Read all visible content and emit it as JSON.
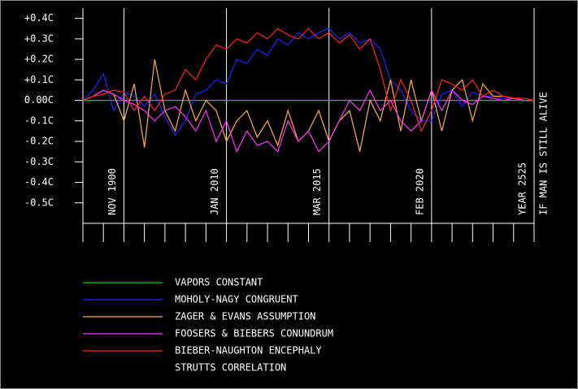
{
  "chart_data": {
    "type": "line",
    "x": [
      0,
      0.5,
      1,
      1.5,
      2,
      2.5,
      3,
      3.5,
      4,
      4.5,
      5,
      5.5,
      6,
      6.5,
      7,
      7.5,
      8,
      8.5,
      9,
      9.5,
      10,
      10.5,
      11,
      11.5,
      12,
      12.5,
      13,
      13.5,
      14,
      14.5,
      15,
      15.5,
      16,
      16.5,
      17,
      17.5,
      18,
      18.5,
      19,
      19.5,
      20,
      20.5,
      21,
      21.5,
      22
    ],
    "xlim": [
      0,
      22
    ],
    "xticks": [
      0,
      1,
      2,
      3,
      4,
      5,
      6,
      7,
      8,
      9,
      10,
      11,
      12,
      13,
      14,
      15,
      16,
      17,
      18,
      19,
      20,
      21,
      22
    ],
    "ylim": [
      -0.6,
      0.45
    ],
    "yticks": [
      {
        "value": 0.4,
        "label": "+0.4C"
      },
      {
        "value": 0.3,
        "label": "+0.3C"
      },
      {
        "value": 0.2,
        "label": "+0.2C"
      },
      {
        "value": 0.1,
        "label": "+0.1C"
      },
      {
        "value": 0,
        "label": "0.00C"
      },
      {
        "value": -0.1,
        "label": "-0.1C"
      },
      {
        "value": -0.2,
        "label": "-0.2C"
      },
      {
        "value": -0.3,
        "label": "-0.3C"
      },
      {
        "value": -0.4,
        "label": "-0.4C"
      },
      {
        "value": -0.5,
        "label": "-0.5C"
      }
    ],
    "markers": [
      {
        "x": 2,
        "label": "NOV 1900"
      },
      {
        "x": 7,
        "label": "JAN 2010"
      },
      {
        "x": 12,
        "label": "MAR 2015"
      },
      {
        "x": 17,
        "label": "FEB 2020"
      },
      {
        "x": 22,
        "label": "YEAR 2525"
      }
    ],
    "annotation": "IF MAN IS STILL ALIVE",
    "series": [
      {
        "name": "VAPORS CONSTANT",
        "color": "#00cc00",
        "values": [
          0,
          0,
          0,
          0,
          0,
          0,
          0,
          0,
          0,
          0,
          0,
          0,
          0,
          0,
          0,
          0,
          0,
          0,
          0,
          0,
          0,
          0,
          0,
          0,
          0,
          0,
          0,
          0,
          0,
          0,
          0,
          0,
          0,
          0,
          0,
          0,
          0,
          0,
          0,
          0,
          0,
          0,
          0,
          0,
          0
        ]
      },
      {
        "name": "MOHOLY-NAGY CONGRUENT",
        "color": "#2222ff",
        "values": [
          0,
          0.05,
          0.13,
          -0.05,
          0.04,
          0.02,
          -0.03,
          0.03,
          -0.08,
          -0.17,
          -0.1,
          0.03,
          0.05,
          0.1,
          0.08,
          0.2,
          0.18,
          0.25,
          0.22,
          0.3,
          0.27,
          0.33,
          0.3,
          0.33,
          0.35,
          0.3,
          0.33,
          0.28,
          0.3,
          0.25,
          0.1,
          0.05,
          -0.05,
          -0.1,
          -0.1,
          0.03,
          0.05,
          -0.03,
          0.04,
          0.02,
          0.02,
          0.01,
          0.01,
          0,
          0
        ]
      },
      {
        "name": "ZAGER & EVANS ASSUMPTION",
        "color": "#ffb040",
        "values": [
          0,
          0.02,
          0.05,
          0.03,
          -0.1,
          0.08,
          -0.23,
          0.2,
          -0.05,
          -0.15,
          0.05,
          -0.1,
          0,
          -0.05,
          -0.2,
          -0.1,
          -0.05,
          -0.18,
          -0.1,
          -0.22,
          -0.05,
          -0.2,
          -0.15,
          -0.05,
          -0.2,
          -0.1,
          -0.05,
          -0.25,
          0,
          -0.1,
          0.1,
          -0.15,
          0.1,
          -0.1,
          0.05,
          -0.15,
          0.05,
          0.1,
          -0.1,
          0.08,
          0.02,
          0.02,
          0.01,
          0,
          0
        ]
      },
      {
        "name": "FOOSERS & BIEBERS CONUNDRUM",
        "color": "#ff33ff",
        "values": [
          0,
          0.02,
          0.05,
          0.03,
          0,
          -0.02,
          -0.05,
          -0.1,
          -0.05,
          -0.03,
          -0.08,
          -0.15,
          -0.05,
          -0.2,
          -0.1,
          -0.25,
          -0.15,
          -0.22,
          -0.2,
          -0.25,
          -0.1,
          -0.2,
          -0.15,
          -0.25,
          -0.2,
          -0.1,
          0,
          -0.05,
          0.05,
          -0.05,
          0,
          -0.1,
          -0.15,
          -0.1,
          0.05,
          -0.05,
          0.05,
          0,
          -0.02,
          0.02,
          0.01,
          0,
          0.01,
          0,
          0
        ]
      },
      {
        "name": "BIEBER-NAUGHTON ENCEPHALY",
        "color": "#ff2222",
        "values": [
          0,
          0.02,
          0.03,
          0.05,
          0.04,
          -0.05,
          0.02,
          -0.05,
          0.03,
          0.05,
          0.15,
          0.1,
          0.2,
          0.27,
          0.25,
          0.3,
          0.28,
          0.33,
          0.3,
          0.35,
          0.32,
          0.3,
          0.35,
          0.3,
          0.33,
          0.28,
          0.32,
          0.25,
          0.3,
          0.15,
          -0.05,
          0.1,
          0,
          -0.15,
          -0.05,
          0.1,
          0.08,
          0.05,
          0.1,
          0.02,
          0.05,
          0.02,
          0.01,
          0.01,
          0
        ]
      },
      {
        "name": "STRUTTS CORRELATION",
        "color": "#000000",
        "values": [
          null,
          null,
          null,
          null,
          null,
          null,
          null,
          null,
          null,
          null,
          null,
          null,
          null,
          null,
          null,
          null,
          null,
          null,
          null,
          null,
          null,
          null,
          null,
          null,
          null,
          null,
          null,
          null,
          null,
          null,
          null,
          null,
          null,
          null,
          null,
          null,
          null,
          null,
          null,
          null,
          null,
          null,
          null,
          null,
          null
        ]
      }
    ]
  }
}
